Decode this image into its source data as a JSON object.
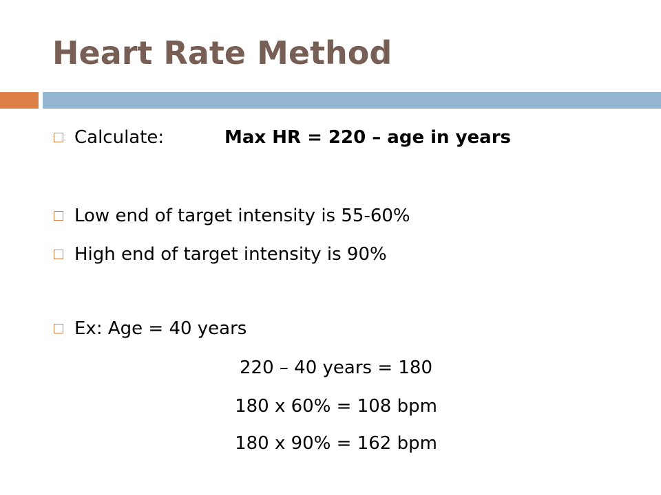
{
  "slide": {
    "title": "Heart Rate Method",
    "bullets": [
      {
        "label": "Calculate:",
        "formula": "Max HR = 220 – age in years"
      },
      {
        "text": "Low end of target intensity is 55-60%"
      },
      {
        "text": "High end of target intensity is 90%"
      },
      {
        "text": "Ex:  Age = 40 years"
      }
    ],
    "example_lines": [
      "220 – 40 years = 180",
      "180 x 60% = 108 bpm",
      "180 x 90% = 162 bpm"
    ]
  },
  "colors": {
    "title": "#775f55",
    "accent_orange": "#dd8047",
    "accent_blue": "#94b6d2"
  },
  "icons": {
    "bullet": "hollow-square-bullet-icon"
  }
}
